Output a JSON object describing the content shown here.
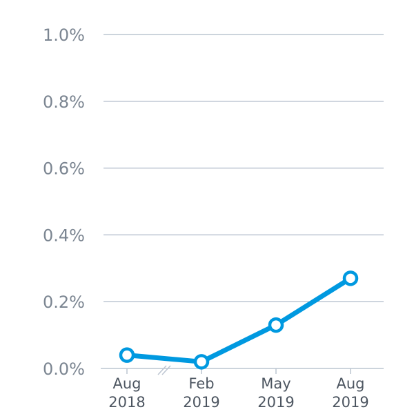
{
  "chart_data": {
    "type": "line",
    "title": "",
    "xlabel": "",
    "ylabel": "",
    "categories": [
      [
        "Aug",
        "2018"
      ],
      [
        "Feb",
        "2019"
      ],
      [
        "May",
        "2019"
      ],
      [
        "Aug",
        "2019"
      ]
    ],
    "series": [
      {
        "name": "rate",
        "values": [
          0.04,
          0.02,
          0.13,
          0.27
        ],
        "color": "#0099e0"
      }
    ],
    "ylim": [
      0,
      1.0
    ],
    "yticks": [
      0.0,
      0.2,
      0.4,
      0.6,
      0.8,
      1.0
    ],
    "ytick_labels": [
      "0.0%",
      "0.2%",
      "0.4%",
      "0.6%",
      "0.8%",
      "1.0%"
    ],
    "grid": true,
    "axis_break_between": [
      0,
      1
    ]
  }
}
